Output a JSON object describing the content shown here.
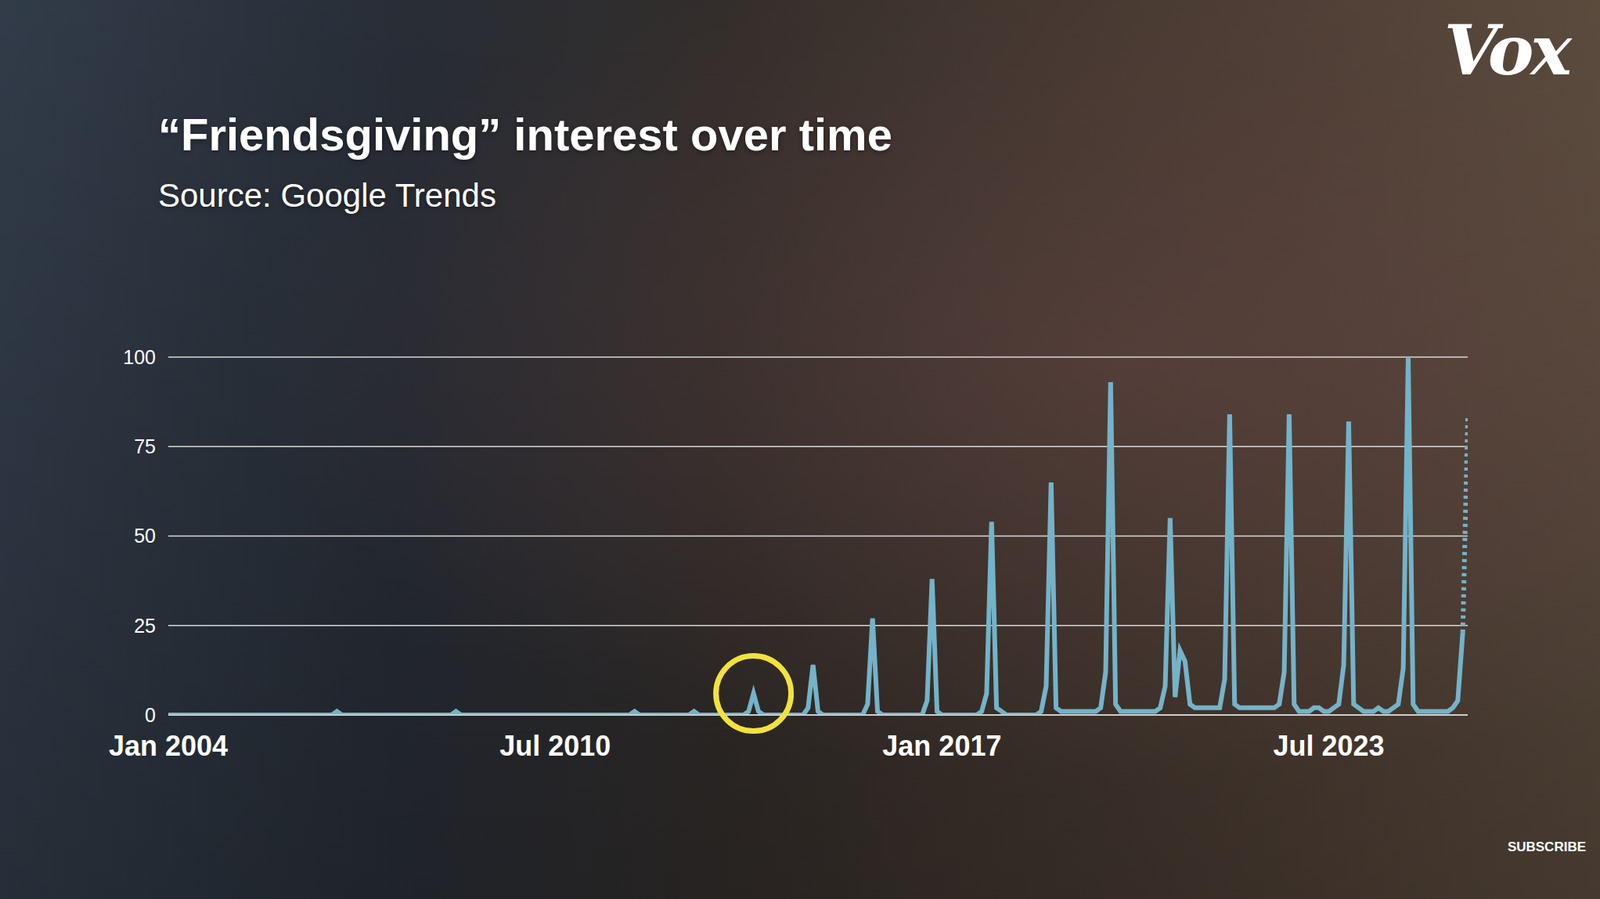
{
  "chart_data": {
    "type": "line",
    "title": "“Friendsgiving” interest over time",
    "subtitle": "Source: Google Trends",
    "x": [
      "2004-01",
      "2004-02",
      "2004-03",
      "2004-04",
      "2004-05",
      "2004-06",
      "2004-07",
      "2004-08",
      "2004-09",
      "2004-10",
      "2004-11",
      "2004-12",
      "2005-01",
      "2005-02",
      "2005-03",
      "2005-04",
      "2005-05",
      "2005-06",
      "2005-07",
      "2005-08",
      "2005-09",
      "2005-10",
      "2005-11",
      "2005-12",
      "2006-01",
      "2006-02",
      "2006-03",
      "2006-04",
      "2006-05",
      "2006-06",
      "2006-07",
      "2006-08",
      "2006-09",
      "2006-10",
      "2006-11",
      "2006-12",
      "2007-01",
      "2007-02",
      "2007-03",
      "2007-04",
      "2007-05",
      "2007-06",
      "2007-07",
      "2007-08",
      "2007-09",
      "2007-10",
      "2007-11",
      "2007-12",
      "2008-01",
      "2008-02",
      "2008-03",
      "2008-04",
      "2008-05",
      "2008-06",
      "2008-07",
      "2008-08",
      "2008-09",
      "2008-10",
      "2008-11",
      "2008-12",
      "2009-01",
      "2009-02",
      "2009-03",
      "2009-04",
      "2009-05",
      "2009-06",
      "2009-07",
      "2009-08",
      "2009-09",
      "2009-10",
      "2009-11",
      "2009-12",
      "2010-01",
      "2010-02",
      "2010-03",
      "2010-04",
      "2010-05",
      "2010-06",
      "2010-07",
      "2010-08",
      "2010-09",
      "2010-10",
      "2010-11",
      "2010-12",
      "2011-01",
      "2011-02",
      "2011-03",
      "2011-04",
      "2011-05",
      "2011-06",
      "2011-07",
      "2011-08",
      "2011-09",
      "2011-10",
      "2011-11",
      "2011-12",
      "2012-01",
      "2012-02",
      "2012-03",
      "2012-04",
      "2012-05",
      "2012-06",
      "2012-07",
      "2012-08",
      "2012-09",
      "2012-10",
      "2012-11",
      "2012-12",
      "2013-01",
      "2013-02",
      "2013-03",
      "2013-04",
      "2013-05",
      "2013-06",
      "2013-07",
      "2013-08",
      "2013-09",
      "2013-10",
      "2013-11",
      "2013-12",
      "2014-01",
      "2014-02",
      "2014-03",
      "2014-04",
      "2014-05",
      "2014-06",
      "2014-07",
      "2014-08",
      "2014-09",
      "2014-10",
      "2014-11",
      "2014-12",
      "2015-01",
      "2015-02",
      "2015-03",
      "2015-04",
      "2015-05",
      "2015-06",
      "2015-07",
      "2015-08",
      "2015-09",
      "2015-10",
      "2015-11",
      "2015-12",
      "2016-01",
      "2016-02",
      "2016-03",
      "2016-04",
      "2016-05",
      "2016-06",
      "2016-07",
      "2016-08",
      "2016-09",
      "2016-10",
      "2016-11",
      "2016-12",
      "2017-01",
      "2017-02",
      "2017-03",
      "2017-04",
      "2017-05",
      "2017-06",
      "2017-07",
      "2017-08",
      "2017-09",
      "2017-10",
      "2017-11",
      "2017-12",
      "2018-01",
      "2018-02",
      "2018-03",
      "2018-04",
      "2018-05",
      "2018-06",
      "2018-07",
      "2018-08",
      "2018-09",
      "2018-10",
      "2018-11",
      "2018-12",
      "2019-01",
      "2019-02",
      "2019-03",
      "2019-04",
      "2019-05",
      "2019-06",
      "2019-07",
      "2019-08",
      "2019-09",
      "2019-10",
      "2019-11",
      "2019-12",
      "2020-01",
      "2020-02",
      "2020-03",
      "2020-04",
      "2020-05",
      "2020-06",
      "2020-07",
      "2020-08",
      "2020-09",
      "2020-10",
      "2020-11",
      "2020-12",
      "2021-01",
      "2021-02",
      "2021-03",
      "2021-04",
      "2021-05",
      "2021-06",
      "2021-07",
      "2021-08",
      "2021-09",
      "2021-10",
      "2021-11",
      "2021-12",
      "2022-01",
      "2022-02",
      "2022-03",
      "2022-04",
      "2022-05",
      "2022-06",
      "2022-07",
      "2022-08",
      "2022-09",
      "2022-10",
      "2022-11",
      "2022-12",
      "2023-01",
      "2023-02",
      "2023-03",
      "2023-04",
      "2023-05",
      "2023-06",
      "2023-07",
      "2023-08",
      "2023-09",
      "2023-10",
      "2023-11",
      "2023-12",
      "2024-01",
      "2024-02",
      "2024-03",
      "2024-04",
      "2024-05",
      "2024-06",
      "2024-07",
      "2024-08",
      "2024-09",
      "2024-10",
      "2024-11",
      "2024-12",
      "2025-01",
      "2025-02",
      "2025-03",
      "2025-04",
      "2025-05",
      "2025-06",
      "2025-07",
      "2025-08",
      "2025-09",
      "2025-10",
      "2025-11"
    ],
    "series": [
      {
        "color": "#74b3c8",
        "line_style": "solid",
        "values": [
          0,
          0,
          0,
          0,
          0,
          0,
          0,
          0,
          0,
          0,
          0,
          0,
          0,
          0,
          0,
          0,
          0,
          0,
          0,
          0,
          0,
          0,
          0,
          0,
          0,
          0,
          0,
          0,
          0,
          0,
          0,
          0,
          0,
          0,
          1,
          0,
          0,
          0,
          0,
          0,
          0,
          0,
          0,
          0,
          0,
          0,
          0,
          0,
          0,
          0,
          0,
          0,
          0,
          0,
          0,
          0,
          0,
          0,
          1,
          0,
          0,
          0,
          0,
          0,
          0,
          0,
          0,
          0,
          0,
          0,
          0,
          0,
          0,
          0,
          0,
          0,
          0,
          0,
          0,
          0,
          0,
          0,
          0,
          0,
          0,
          0,
          0,
          0,
          0,
          0,
          0,
          0,
          0,
          0,
          1,
          0,
          0,
          0,
          0,
          0,
          0,
          0,
          0,
          0,
          0,
          0,
          1,
          0,
          0,
          0,
          0,
          0,
          0,
          0,
          0,
          0,
          0,
          1,
          6,
          1,
          0,
          0,
          0,
          0,
          0,
          0,
          0,
          0,
          0,
          2,
          14,
          1,
          0,
          0,
          0,
          0,
          0,
          0,
          0,
          0,
          0,
          3,
          27,
          1,
          0,
          0,
          0,
          0,
          0,
          0,
          0,
          0,
          0,
          4,
          38,
          1,
          0,
          0,
          0,
          0,
          0,
          0,
          0,
          0,
          1,
          6,
          54,
          2,
          1,
          0,
          0,
          0,
          0,
          0,
          0,
          0,
          1,
          8,
          65,
          2,
          1,
          1,
          1,
          1,
          1,
          1,
          1,
          1,
          2,
          12,
          93,
          3,
          1,
          1,
          1,
          1,
          1,
          1,
          1,
          1,
          2,
          8,
          55,
          5,
          18,
          15,
          3,
          2,
          2,
          2,
          2,
          2,
          2,
          10,
          84,
          3,
          2,
          2,
          2,
          2,
          2,
          2,
          2,
          2,
          3,
          12,
          84,
          3,
          1,
          1,
          1,
          2,
          2,
          1,
          1,
          2,
          3,
          14,
          82,
          3,
          2,
          1,
          1,
          1,
          2,
          1,
          1,
          2,
          3,
          13,
          100,
          3,
          1,
          1,
          1,
          1,
          1,
          1,
          1,
          2,
          4,
          23,
          null
        ]
      },
      {
        "color": "#74b3c8",
        "line_style": "dotted",
        "values": [
          null,
          null,
          null,
          null,
          null,
          null,
          null,
          null,
          null,
          null,
          null,
          null,
          null,
          null,
          null,
          null,
          null,
          null,
          null,
          null,
          null,
          null,
          null,
          null,
          null,
          null,
          null,
          null,
          null,
          null,
          null,
          null,
          null,
          null,
          null,
          null,
          null,
          null,
          null,
          null,
          null,
          null,
          null,
          null,
          null,
          null,
          null,
          null,
          null,
          null,
          null,
          null,
          null,
          null,
          null,
          null,
          null,
          null,
          null,
          null,
          null,
          null,
          null,
          null,
          null,
          null,
          null,
          null,
          null,
          null,
          null,
          null,
          null,
          null,
          null,
          null,
          null,
          null,
          null,
          null,
          null,
          null,
          null,
          null,
          null,
          null,
          null,
          null,
          null,
          null,
          null,
          null,
          null,
          null,
          null,
          null,
          null,
          null,
          null,
          null,
          null,
          null,
          null,
          null,
          null,
          null,
          null,
          null,
          null,
          null,
          null,
          null,
          null,
          null,
          null,
          null,
          null,
          null,
          null,
          null,
          null,
          null,
          null,
          null,
          null,
          null,
          null,
          null,
          null,
          null,
          null,
          null,
          null,
          null,
          null,
          null,
          null,
          null,
          null,
          null,
          null,
          null,
          null,
          null,
          null,
          null,
          null,
          null,
          null,
          null,
          null,
          null,
          null,
          null,
          null,
          null,
          null,
          null,
          null,
          null,
          null,
          null,
          null,
          null,
          null,
          null,
          null,
          null,
          null,
          null,
          null,
          null,
          null,
          null,
          null,
          null,
          null,
          null,
          null,
          null,
          null,
          null,
          null,
          null,
          null,
          null,
          null,
          null,
          null,
          null,
          null,
          null,
          null,
          null,
          null,
          null,
          null,
          null,
          null,
          null,
          null,
          null,
          null,
          null,
          null,
          null,
          null,
          null,
          null,
          null,
          null,
          null,
          null,
          null,
          null,
          null,
          null,
          null,
          null,
          null,
          null,
          null,
          null,
          null,
          null,
          null,
          null,
          null,
          null,
          null,
          null,
          null,
          null,
          null,
          null,
          null,
          null,
          null,
          null,
          null,
          null,
          null,
          null,
          null,
          null,
          null,
          null,
          null,
          null,
          null,
          null,
          null,
          null,
          null,
          null,
          null,
          null,
          null,
          null,
          null,
          null,
          23,
          83
        ]
      }
    ],
    "xlim": [
      "2004-01",
      "2025-11"
    ],
    "xticks": [
      {
        "value": "2004-01",
        "label": "Jan 2004"
      },
      {
        "value": "2010-07",
        "label": "Jul 2010"
      },
      {
        "value": "2017-01",
        "label": "Jan 2017"
      },
      {
        "value": "2023-07",
        "label": "Jul 2023"
      }
    ],
    "ylim": [
      0,
      100
    ],
    "yticks": [
      0,
      25,
      50,
      75,
      100
    ],
    "grid": true,
    "highlight": {
      "x": "2013-11",
      "y": 6,
      "color": "#f2e23c"
    }
  },
  "overlay": {
    "logo": "Vox",
    "button": "SUBSCRIBE"
  }
}
